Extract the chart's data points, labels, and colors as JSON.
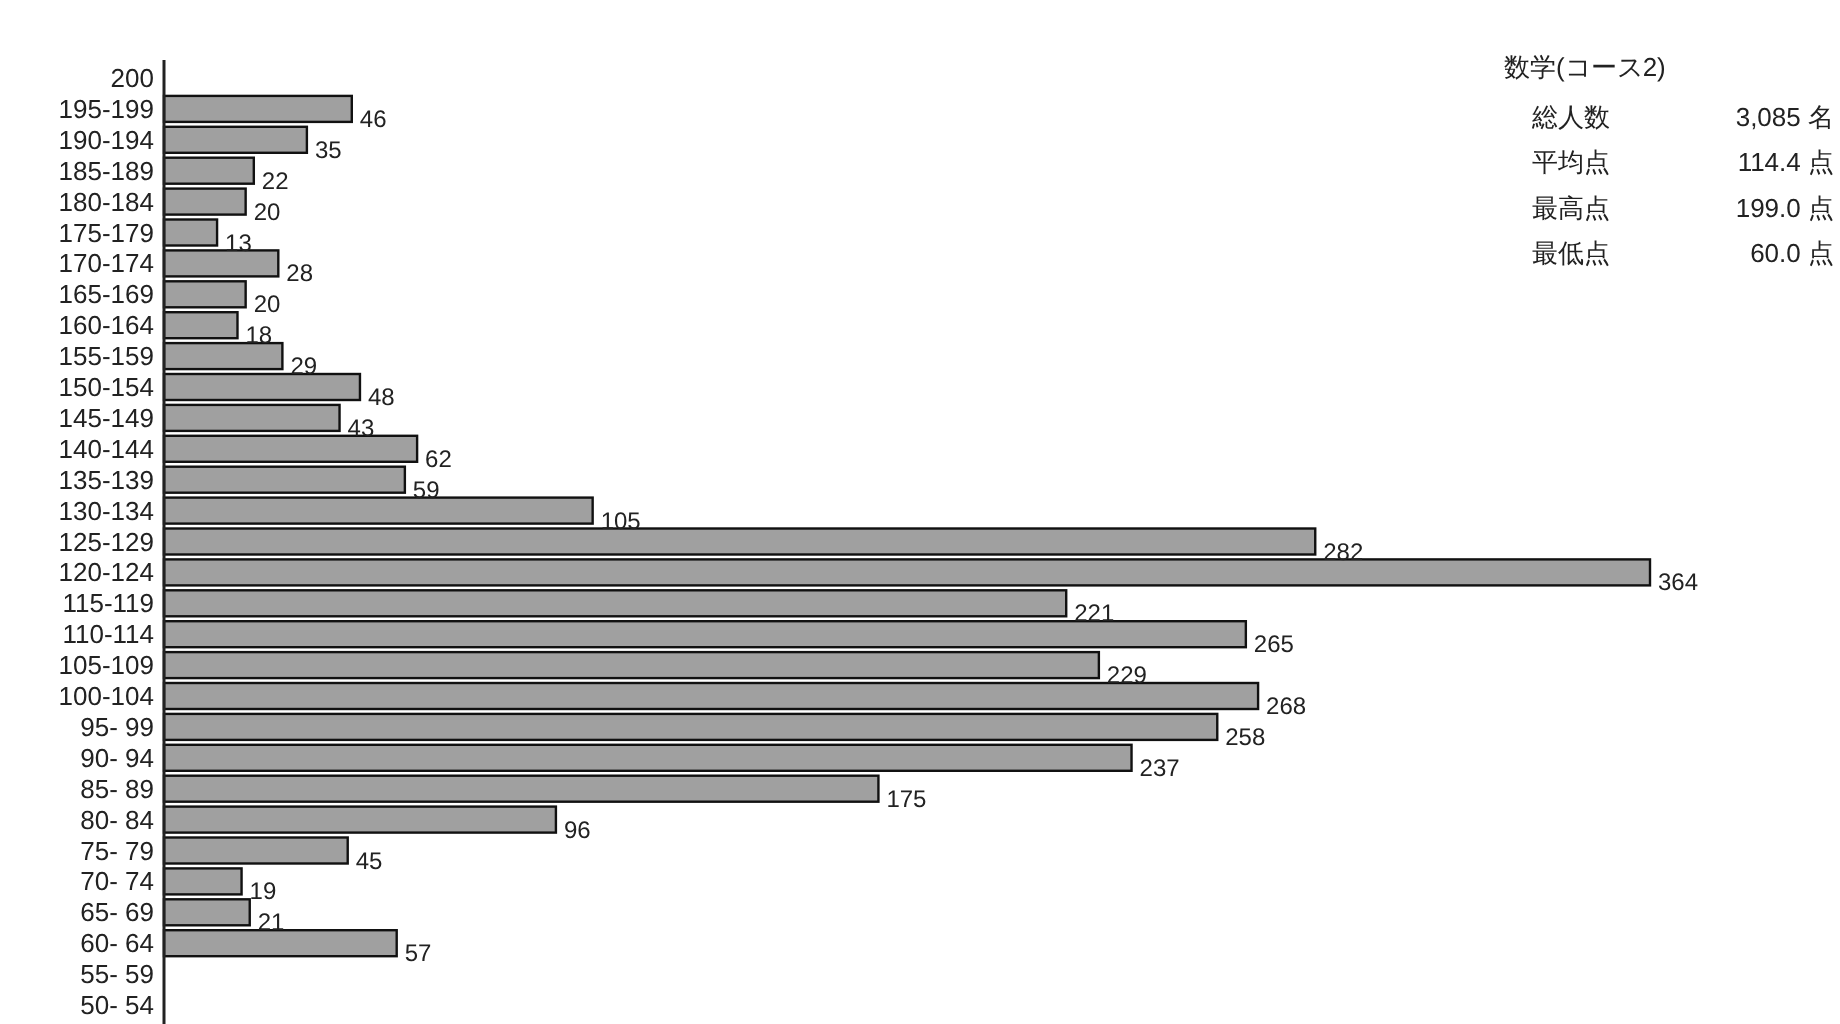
{
  "chart_data": {
    "type": "bar",
    "orientation": "horizontal",
    "title": "数学(コース2)",
    "categories": [
      "200",
      "195-199",
      "190-194",
      "185-189",
      "180-184",
      "175-179",
      "170-174",
      "165-169",
      "160-164",
      "155-159",
      "150-154",
      "145-149",
      "140-144",
      "135-139",
      "130-134",
      "125-129",
      "120-124",
      "115-119",
      "110-114",
      "105-109",
      "100-104",
      "95- 99",
      "90- 94",
      "85- 89",
      "80- 84",
      "75- 79",
      "70- 74",
      "65- 69",
      "60- 64",
      "55- 59",
      "50- 54"
    ],
    "values": [
      0,
      46,
      35,
      22,
      20,
      13,
      28,
      20,
      18,
      29,
      48,
      43,
      62,
      59,
      105,
      282,
      364,
      221,
      265,
      229,
      268,
      258,
      237,
      175,
      96,
      45,
      19,
      21,
      57,
      0,
      0
    ],
    "value_labels": [
      null,
      "46",
      "35",
      "22",
      "20",
      "13",
      "28",
      "20",
      "18",
      "29",
      "48",
      "43",
      "62",
      "59",
      "105",
      "282",
      "364",
      "221",
      "265",
      "229",
      "268",
      "258",
      "237",
      "175",
      "96",
      "45",
      "19",
      "21",
      "57",
      null,
      null
    ],
    "color": "#a0a0a0",
    "annotations": [
      "総人数",
      "3,085 名",
      "平均点",
      "114.4 点",
      "最高点",
      "199.0 点",
      "最低点",
      "60.0 点"
    ]
  }
}
